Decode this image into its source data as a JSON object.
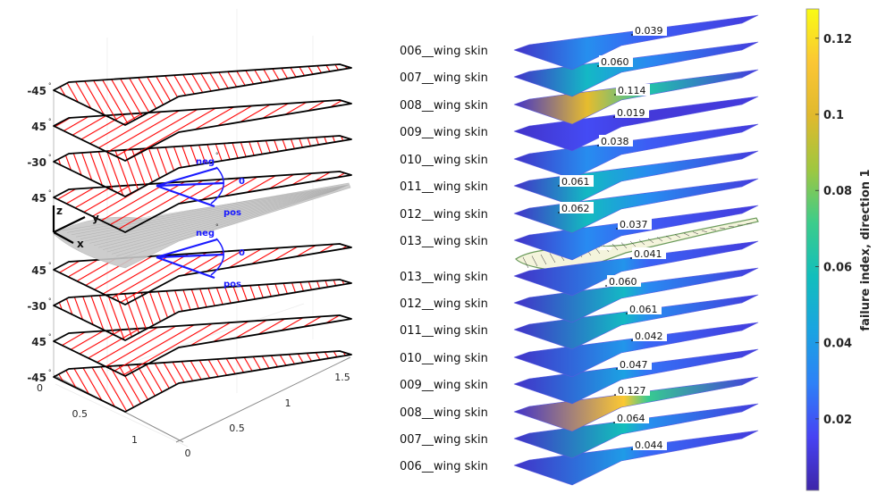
{
  "chart_data": [
    {
      "type": "diagram-3d",
      "title": "",
      "description": "Exploded ply layup of wing skin with fiber orientation hatching",
      "ply_angles_top_to_bottom": [
        "-45",
        "45",
        "-30",
        "45",
        "45",
        "-30",
        "45",
        "-45"
      ],
      "degree_symbol": "°",
      "axis_triad": {
        "z": "z",
        "y": "y",
        "x": "x"
      },
      "angle_annotations": {
        "neg": "neg",
        "zero": "0",
        "pos": "pos"
      },
      "x_ticks": [
        "0",
        "0.5",
        "1"
      ],
      "y_ticks": [
        "0",
        "0.5",
        "1",
        "1.5"
      ],
      "hatch_color": "#ff0000",
      "outline_color": "#000000",
      "annotation_color": "#1a1aff",
      "reference_wing_color": "#b0b0b0"
    },
    {
      "type": "heatmap",
      "title": "",
      "description": "Per-layer failure index of wing skin laminate (upper and lower skins)",
      "layers": [
        {
          "name": "006__wing skin",
          "max_failure_index": 0.039,
          "surface": "upper"
        },
        {
          "name": "007__wing skin",
          "max_failure_index": 0.06,
          "surface": "upper"
        },
        {
          "name": "008__wing skin",
          "max_failure_index": 0.114,
          "surface": "upper"
        },
        {
          "name": "009__wing skin",
          "max_failure_index": 0.019,
          "surface": "upper"
        },
        {
          "name": "010__wing skin",
          "max_failure_index": 0.038,
          "surface": "upper"
        },
        {
          "name": "011__wing skin",
          "max_failure_index": 0.061,
          "surface": "upper"
        },
        {
          "name": "012__wing skin",
          "max_failure_index": 0.062,
          "surface": "upper"
        },
        {
          "name": "013__wing skin",
          "max_failure_index": 0.037,
          "surface": "upper"
        },
        {
          "name": "013__wing skin",
          "max_failure_index": 0.041,
          "surface": "lower"
        },
        {
          "name": "012__wing skin",
          "max_failure_index": 0.06,
          "surface": "lower"
        },
        {
          "name": "011__wing skin",
          "max_failure_index": 0.061,
          "surface": "lower"
        },
        {
          "name": "010__wing skin",
          "max_failure_index": 0.042,
          "surface": "lower"
        },
        {
          "name": "009__wing skin",
          "max_failure_index": 0.047,
          "surface": "lower"
        },
        {
          "name": "008__wing skin",
          "max_failure_index": 0.127,
          "surface": "lower"
        },
        {
          "name": "007__wing skin",
          "max_failure_index": 0.064,
          "surface": "lower"
        },
        {
          "name": "006__wing skin",
          "max_failure_index": 0.044,
          "surface": "lower"
        }
      ],
      "colorbar": {
        "label": "failure index, direction 1",
        "range": [
          0.0012,
          0.1277
        ],
        "ticks": [
          0.02,
          0.04,
          0.06,
          0.08,
          0.1,
          0.12
        ],
        "tick_labels": [
          "0.02",
          "0.04",
          "0.06",
          "0.08",
          "0.1",
          "0.12"
        ],
        "colormap": "parula",
        "colormap_stops": [
          "#3e26a8",
          "#4743f3",
          "#2e81f7",
          "#1aa4e1",
          "#12bebc",
          "#3ccc8b",
          "#9fc740",
          "#e0b92d",
          "#fbc634",
          "#f9fb14"
        ]
      }
    }
  ]
}
